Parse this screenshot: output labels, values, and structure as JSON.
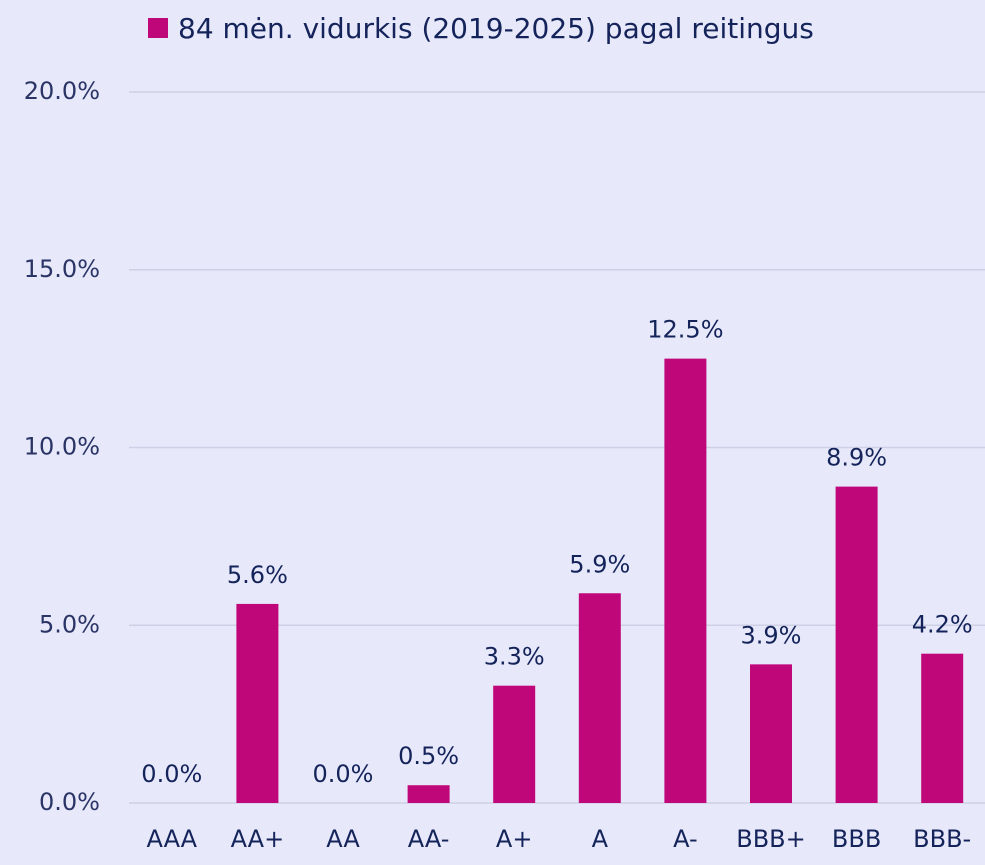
{
  "chart_data": {
    "type": "bar",
    "categories": [
      "AAA",
      "AA+",
      "AA",
      "AA-",
      "A+",
      "A",
      "A-",
      "BBB+",
      "BBB",
      "BBB-"
    ],
    "series": [
      {
        "name": "84 mėn. vidurkis (2019-2025) pagal reitingus",
        "color": "#c0077a",
        "values": [
          0,
          5.6,
          0,
          0.5,
          3.3,
          5.9,
          12.5,
          3.9,
          8.9,
          4.2
        ],
        "value_labels": [
          "0.0%",
          "5.6%",
          "0.0%",
          "0.5%",
          "3.3%",
          "5.9%",
          "12.5%",
          "3.9%",
          "8.9%",
          "4.2%"
        ]
      }
    ],
    "ylim": [
      0,
      20
    ],
    "yticks": [
      {
        "value": 0,
        "label": "0.0%"
      },
      {
        "value": 5,
        "label": "5.0%"
      },
      {
        "value": 10,
        "label": "10.0%"
      },
      {
        "value": 15,
        "label": "15.0%"
      },
      {
        "value": 20,
        "label": "20.0%"
      }
    ],
    "grid": true,
    "legend": "top"
  }
}
